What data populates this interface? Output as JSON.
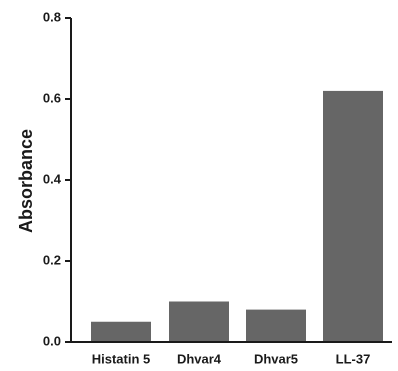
{
  "chart_data": {
    "type": "bar",
    "title": "",
    "xlabel": "",
    "ylabel": "Absorbance",
    "categories": [
      "Histatin 5",
      "Dhvar4",
      "Dhvar5",
      "LL-37"
    ],
    "values": [
      0.05,
      0.1,
      0.08,
      0.62
    ],
    "ylim": [
      0,
      0.8
    ],
    "yticks": [
      0.0,
      0.2,
      0.4,
      0.6,
      0.8
    ],
    "ytick_labels": [
      "0.0",
      "0.2",
      "0.4",
      "0.6",
      "0.8"
    ],
    "grid": false,
    "legend": "none",
    "bar_color": "#666666",
    "axis_color": "#1a1a1a"
  }
}
